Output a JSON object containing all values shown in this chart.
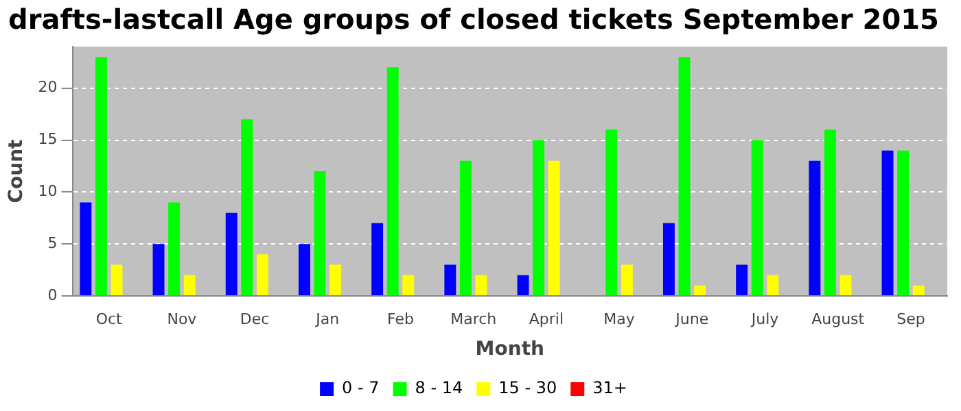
{
  "chart_data": {
    "type": "bar",
    "title": "drafts-lastcall Age groups of closed tickets September 2015",
    "xlabel": "Month",
    "ylabel": "Count",
    "categories": [
      "Oct",
      "Nov",
      "Dec",
      "Jan",
      "Feb",
      "March",
      "April",
      "May",
      "June",
      "July",
      "August",
      "Sep"
    ],
    "series": [
      {
        "name": "0 - 7",
        "color": "#0000ff",
        "values": [
          9,
          5,
          8,
          5,
          7,
          3,
          2,
          0,
          7,
          3,
          13,
          14
        ]
      },
      {
        "name": "8 - 14",
        "color": "#00ff00",
        "values": [
          23,
          9,
          17,
          12,
          22,
          13,
          15,
          16,
          23,
          15,
          16,
          14
        ]
      },
      {
        "name": "15 - 30",
        "color": "#ffff00",
        "values": [
          3,
          2,
          4,
          3,
          2,
          2,
          13,
          3,
          1,
          2,
          2,
          1
        ]
      },
      {
        "name": "31+",
        "color": "#ff0000",
        "values": [
          0,
          0,
          0,
          0,
          0,
          0,
          0,
          0,
          0,
          0,
          0,
          0
        ]
      }
    ],
    "ylim": [
      0,
      24
    ],
    "yticks": [
      0,
      5,
      10,
      15,
      20
    ],
    "grid": "y",
    "legend": "bottom"
  }
}
